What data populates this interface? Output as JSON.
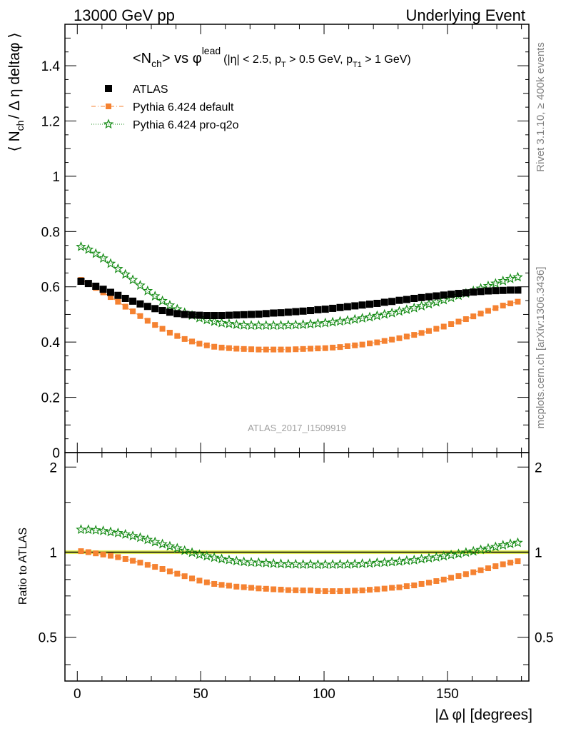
{
  "header": {
    "left": "13000 GeV pp",
    "right": "Underlying Event"
  },
  "side_labels": {
    "rivet": "Rivet 3.1.10, ≥ 400k events",
    "mcplots": "mcplots.cern.ch [arXiv:1306.3436]"
  },
  "plot_title": {
    "n": "<N",
    "ch_sub": "ch",
    "vs": "> vs φ",
    "lead_sup": "lead",
    "cuts_a": "(|η| < 2.5, p",
    "t_sub": "T",
    "cuts_b": " > 0.5 GeV, p",
    "t1_sub": "T1",
    "cuts_c": " > 1 GeV)"
  },
  "analysis_id": "ATLAS_2017_I1509919",
  "ratio_ylabel": "Ratio to ATLAS",
  "main_ylabel": {
    "a": "⟨ N",
    "sub": "ch",
    "b": "/ Δ η deltaφ ⟩"
  },
  "colors": {
    "atlas": "#000000",
    "default": "#f58231",
    "proq2o": "#138a13",
    "band": "#e6f25a"
  },
  "chart_data": {
    "type": "scatter",
    "x_label": "|Δ φ| [degrees]",
    "xlim": [
      -5,
      183
    ],
    "x_ticks": [
      0,
      50,
      100,
      150
    ],
    "main": {
      "ylim": [
        0,
        1.55
      ],
      "y_ticks": [
        {
          "v": 0,
          "label": "0"
        },
        {
          "v": 0.2,
          "label": "0.2"
        },
        {
          "v": 0.4,
          "label": "0.4"
        },
        {
          "v": 0.6,
          "label": "0.6"
        },
        {
          "v": 0.8,
          "label": "0.8"
        },
        {
          "v": 1.0,
          "label": "1"
        },
        {
          "v": 1.2,
          "label": "1.2"
        },
        {
          "v": 1.4,
          "label": "1.4"
        }
      ]
    },
    "ratio": {
      "scale": "log",
      "ylim": [
        0.35,
        2.25
      ],
      "y_ticks": [
        {
          "v": 0.5,
          "label": "0.5"
        },
        {
          "v": 1.0,
          "label": "1"
        },
        {
          "v": 2.0,
          "label": "2"
        }
      ],
      "band": [
        0.985,
        1.015
      ]
    },
    "legend": {
      "placement": "top-left",
      "entries": [
        {
          "name": "ATLAS",
          "key": "atlas"
        },
        {
          "name": "Pythia 6.424 default",
          "key": "default"
        },
        {
          "name": "Pythia 6.424 pro-q2o",
          "key": "proq2o"
        }
      ]
    },
    "series": [
      {
        "name": "ATLAS",
        "key": "atlas",
        "x": [
          1.5,
          4.5,
          7.5,
          10.5,
          13.5,
          16.5,
          19.5,
          22.5,
          25.5,
          28.5,
          31.5,
          34.5,
          37.5,
          40.5,
          43.5,
          46.5,
          49.5,
          52.5,
          55.5,
          58.5,
          61.5,
          64.5,
          67.5,
          70.5,
          73.5,
          76.5,
          79.5,
          82.5,
          85.5,
          88.5,
          91.5,
          94.5,
          97.5,
          100.5,
          103.5,
          106.5,
          109.5,
          112.5,
          115.5,
          118.5,
          121.5,
          124.5,
          127.5,
          130.5,
          133.5,
          136.5,
          139.5,
          142.5,
          145.5,
          148.5,
          151.5,
          154.5,
          157.5,
          160.5,
          163.5,
          166.5,
          169.5,
          172.5,
          175.5,
          178.5
        ],
        "y": [
          0.62,
          0.612,
          0.602,
          0.591,
          0.58,
          0.569,
          0.558,
          0.548,
          0.538,
          0.529,
          0.521,
          0.514,
          0.508,
          0.503,
          0.5,
          0.498,
          0.497,
          0.496,
          0.496,
          0.496,
          0.497,
          0.498,
          0.499,
          0.5,
          0.501,
          0.503,
          0.505,
          0.506,
          0.508,
          0.51,
          0.512,
          0.514,
          0.517,
          0.519,
          0.522,
          0.525,
          0.528,
          0.531,
          0.534,
          0.537,
          0.54,
          0.544,
          0.547,
          0.551,
          0.554,
          0.558,
          0.561,
          0.564,
          0.567,
          0.57,
          0.573,
          0.576,
          0.578,
          0.581,
          0.583,
          0.585,
          0.586,
          0.587,
          0.588,
          0.588
        ]
      },
      {
        "name": "Pythia 6.424 default",
        "key": "default",
        "x": [
          1.5,
          4.5,
          7.5,
          10.5,
          13.5,
          16.5,
          19.5,
          22.5,
          25.5,
          28.5,
          31.5,
          34.5,
          37.5,
          40.5,
          43.5,
          46.5,
          49.5,
          52.5,
          55.5,
          58.5,
          61.5,
          64.5,
          67.5,
          70.5,
          73.5,
          76.5,
          79.5,
          82.5,
          85.5,
          88.5,
          91.5,
          94.5,
          97.5,
          100.5,
          103.5,
          106.5,
          109.5,
          112.5,
          115.5,
          118.5,
          121.5,
          124.5,
          127.5,
          130.5,
          133.5,
          136.5,
          139.5,
          142.5,
          145.5,
          148.5,
          151.5,
          154.5,
          157.5,
          160.5,
          163.5,
          166.5,
          169.5,
          172.5,
          175.5,
          178.5
        ],
        "y": [
          0.625,
          0.612,
          0.596,
          0.58,
          0.563,
          0.546,
          0.528,
          0.511,
          0.494,
          0.477,
          0.462,
          0.448,
          0.434,
          0.422,
          0.411,
          0.402,
          0.394,
          0.388,
          0.383,
          0.38,
          0.378,
          0.376,
          0.375,
          0.374,
          0.373,
          0.373,
          0.373,
          0.373,
          0.373,
          0.374,
          0.375,
          0.376,
          0.377,
          0.378,
          0.38,
          0.382,
          0.385,
          0.388,
          0.391,
          0.395,
          0.399,
          0.404,
          0.409,
          0.414,
          0.42,
          0.426,
          0.433,
          0.44,
          0.448,
          0.456,
          0.465,
          0.474,
          0.483,
          0.493,
          0.503,
          0.513,
          0.523,
          0.532,
          0.54,
          0.546
        ]
      },
      {
        "name": "Pythia 6.424 pro-q2o",
        "key": "proq2o",
        "x": [
          1.5,
          4.5,
          7.5,
          10.5,
          13.5,
          16.5,
          19.5,
          22.5,
          25.5,
          28.5,
          31.5,
          34.5,
          37.5,
          40.5,
          43.5,
          46.5,
          49.5,
          52.5,
          55.5,
          58.5,
          61.5,
          64.5,
          67.5,
          70.5,
          73.5,
          76.5,
          79.5,
          82.5,
          85.5,
          88.5,
          91.5,
          94.5,
          97.5,
          100.5,
          103.5,
          106.5,
          109.5,
          112.5,
          115.5,
          118.5,
          121.5,
          124.5,
          127.5,
          130.5,
          133.5,
          136.5,
          139.5,
          142.5,
          145.5,
          148.5,
          151.5,
          154.5,
          157.5,
          160.5,
          163.5,
          166.5,
          169.5,
          172.5,
          175.5,
          178.5
        ],
        "y": [
          0.745,
          0.735,
          0.72,
          0.703,
          0.684,
          0.665,
          0.645,
          0.625,
          0.605,
          0.585,
          0.566,
          0.549,
          0.533,
          0.519,
          0.506,
          0.496,
          0.487,
          0.48,
          0.474,
          0.469,
          0.466,
          0.463,
          0.461,
          0.46,
          0.46,
          0.46,
          0.46,
          0.46,
          0.461,
          0.462,
          0.463,
          0.465,
          0.467,
          0.469,
          0.472,
          0.475,
          0.478,
          0.482,
          0.486,
          0.49,
          0.495,
          0.5,
          0.505,
          0.511,
          0.517,
          0.523,
          0.53,
          0.537,
          0.544,
          0.552,
          0.56,
          0.568,
          0.576,
          0.585,
          0.594,
          0.603,
          0.612,
          0.621,
          0.629,
          0.635
        ]
      }
    ],
    "ratio_series": [
      {
        "name": "Pythia 6.424 default",
        "key": "default",
        "y": [
          1.008,
          1.0,
          0.99,
          0.981,
          0.971,
          0.96,
          0.946,
          0.932,
          0.918,
          0.902,
          0.887,
          0.872,
          0.855,
          0.839,
          0.822,
          0.807,
          0.793,
          0.782,
          0.772,
          0.766,
          0.761,
          0.755,
          0.752,
          0.748,
          0.744,
          0.742,
          0.739,
          0.737,
          0.734,
          0.733,
          0.732,
          0.732,
          0.729,
          0.728,
          0.728,
          0.728,
          0.729,
          0.731,
          0.732,
          0.736,
          0.739,
          0.743,
          0.748,
          0.751,
          0.758,
          0.763,
          0.772,
          0.78,
          0.79,
          0.8,
          0.812,
          0.823,
          0.836,
          0.849,
          0.863,
          0.877,
          0.892,
          0.906,
          0.918,
          0.929
        ]
      },
      {
        "name": "Pythia 6.424 pro-q2o",
        "key": "proq2o",
        "y": [
          1.202,
          1.201,
          1.196,
          1.189,
          1.179,
          1.169,
          1.156,
          1.141,
          1.125,
          1.106,
          1.086,
          1.068,
          1.049,
          1.032,
          1.012,
          0.996,
          0.98,
          0.968,
          0.956,
          0.946,
          0.938,
          0.93,
          0.924,
          0.92,
          0.918,
          0.915,
          0.911,
          0.909,
          0.907,
          0.906,
          0.904,
          0.905,
          0.903,
          0.904,
          0.904,
          0.905,
          0.905,
          0.908,
          0.91,
          0.912,
          0.917,
          0.919,
          0.923,
          0.927,
          0.933,
          0.937,
          0.945,
          0.952,
          0.959,
          0.968,
          0.977,
          0.986,
          0.997,
          1.007,
          1.019,
          1.031,
          1.044,
          1.058,
          1.07,
          1.08
        ]
      }
    ]
  }
}
